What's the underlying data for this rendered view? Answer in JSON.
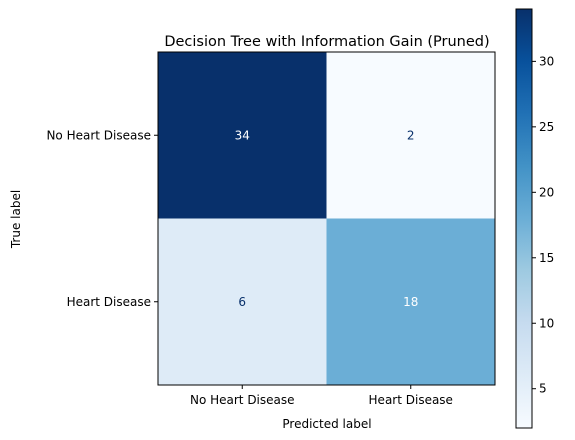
{
  "chart_data": {
    "type": "heatmap",
    "title": "Decision Tree with Information Gain (Pruned)",
    "xlabel": "Predicted label",
    "ylabel": "True label",
    "x_categories": [
      "No Heart Disease",
      "Heart Disease"
    ],
    "y_categories": [
      "No Heart Disease",
      "Heart Disease"
    ],
    "values": [
      [
        34,
        2
      ],
      [
        6,
        18
      ]
    ],
    "colormap": "Blues",
    "colorbar": {
      "min": 2,
      "max": 34,
      "ticks": [
        5,
        10,
        15,
        20,
        25,
        30
      ],
      "tick_labels": [
        "5",
        "10",
        "15",
        "20",
        "25",
        "30"
      ]
    }
  }
}
